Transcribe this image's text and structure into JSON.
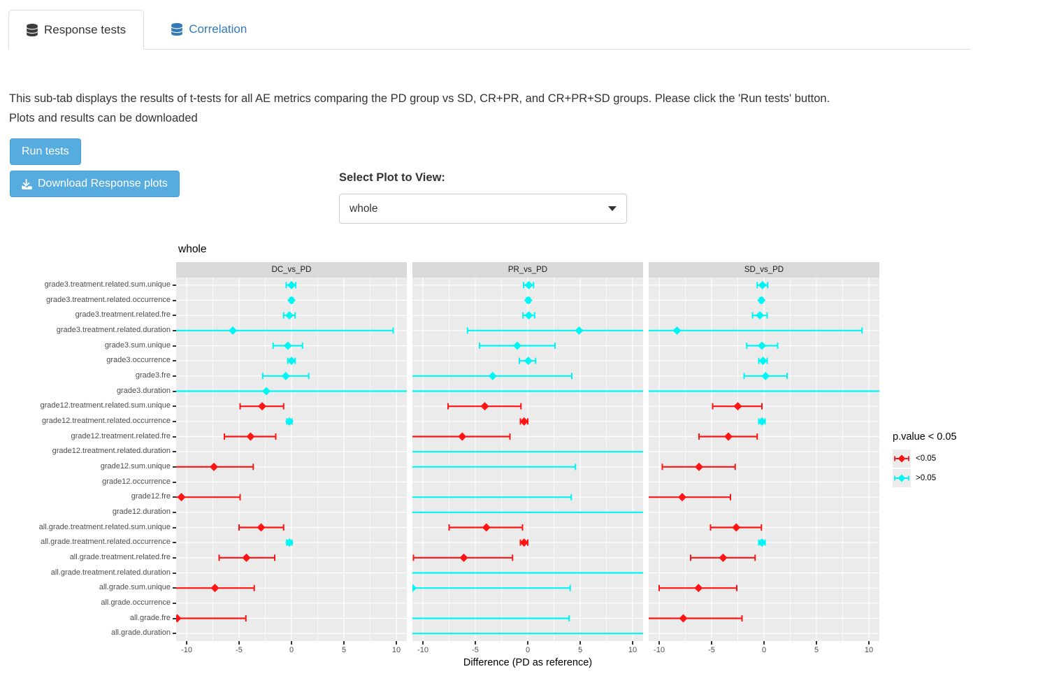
{
  "tabs": [
    {
      "label": "Response tests",
      "active": true
    },
    {
      "label": "Correlation",
      "active": false
    }
  ],
  "description": {
    "line1": "This sub-tab displays the results of t-tests for all AE metrics comparing the PD group vs SD, CR+PR, and CR+PR+SD groups. Please click the 'Run tests' button.",
    "line2": "Plots and results can be downloaded"
  },
  "buttons": {
    "run_label": "Run tests",
    "download_label": "Download Response plots"
  },
  "plot_selector": {
    "label": "Select Plot to View:",
    "value": "whole"
  },
  "colors": {
    "significant": "#FF1414",
    "not_significant": "#00F5F5",
    "button": "#56ACDF",
    "panel_bg": "#EBEBEB",
    "strip_bg": "#D9D9D9"
  },
  "chart_data": {
    "type": "scatter",
    "subtype": "faceted-forest-errorbar",
    "title": "whole",
    "facets": [
      "DC_vs_PD",
      "PR_vs_PD",
      "SD_vs_PD"
    ],
    "xlabel": "Difference (PD as reference)",
    "x_ticks": [
      -10,
      -5,
      0,
      5,
      10
    ],
    "xlim": [
      -11,
      11
    ],
    "grid": true,
    "legend": {
      "title": "p.value < 0.05",
      "position": "right",
      "entries": [
        {
          "label": "<0.05",
          "color": "#FF1414"
        },
        {
          "label": ">0.05",
          "color": "#00F5F5"
        }
      ]
    },
    "categories": [
      "grade3.treatment.related.sum.unique",
      "grade3.treatment.related.occurrence",
      "grade3.treatment.related.fre",
      "grade3.treatment.related.duration",
      "grade3.sum.unique",
      "grade3.occurrence",
      "grade3.fre",
      "grade3.duration",
      "grade12.treatment.related.sum.unique",
      "grade12.treatment.related.occurrence",
      "grade12.treatment.related.fre",
      "grade12.treatment.related.duration",
      "grade12.sum.unique",
      "grade12.occurrence",
      "grade12.fre",
      "grade12.duration",
      "all.grade.treatment.related.sum.unique",
      "all.grade.treatment.related.occurrence",
      "all.grade.treatment.related.fre",
      "all.grade.treatment.related.duration",
      "all.grade.sum.unique",
      "all.grade.occurrence",
      "all.grade.fre",
      "all.grade.duration"
    ],
    "series": [
      {
        "name": "DC_vs_PD",
        "points": [
          {
            "est": 0.0,
            "lo": -0.5,
            "hi": 0.4,
            "sig": false
          },
          {
            "est": 0.0,
            "lo": -0.15,
            "hi": 0.15,
            "sig": false
          },
          {
            "est": -0.2,
            "lo": -0.75,
            "hi": 0.35,
            "sig": false
          },
          {
            "est": -5.6,
            "lo": -11,
            "hi": 9.7,
            "sig": false,
            "clipLo": true
          },
          {
            "est": -0.35,
            "lo": -1.75,
            "hi": 1.05,
            "sig": false
          },
          {
            "est": 0.0,
            "lo": -0.35,
            "hi": 0.35,
            "sig": false
          },
          {
            "est": -0.55,
            "lo": -2.75,
            "hi": 1.65,
            "sig": false
          },
          {
            "est": -2.4,
            "lo": -11,
            "hi": 11,
            "sig": false,
            "clipLo": true,
            "clipHi": true
          },
          {
            "est": -2.8,
            "lo": -4.9,
            "hi": -0.75,
            "sig": true
          },
          {
            "est": -0.2,
            "lo": -0.45,
            "hi": 0.05,
            "sig": false
          },
          {
            "est": -3.9,
            "lo": -6.4,
            "hi": -1.5,
            "sig": true
          },
          null,
          {
            "est": -7.4,
            "lo": -11,
            "hi": -3.65,
            "sig": true,
            "clipLo": true
          },
          null,
          {
            "est": -10.5,
            "lo": -11,
            "hi": -4.9,
            "sig": true,
            "clipLo": true
          },
          null,
          {
            "est": -2.9,
            "lo": -5.0,
            "hi": -0.75,
            "sig": true
          },
          {
            "est": -0.2,
            "lo": -0.45,
            "hi": 0.05,
            "sig": false
          },
          {
            "est": -4.3,
            "lo": -6.9,
            "hi": -1.6,
            "sig": true
          },
          null,
          {
            "est": -7.3,
            "lo": -11,
            "hi": -3.55,
            "sig": true,
            "clipLo": true
          },
          null,
          {
            "est": -10.9,
            "lo": -11,
            "hi": -4.35,
            "sig": true,
            "clipLo": true
          },
          null
        ]
      },
      {
        "name": "PR_vs_PD",
        "points": [
          {
            "est": 0.1,
            "lo": -0.4,
            "hi": 0.55,
            "sig": false
          },
          {
            "est": 0.05,
            "lo": -0.1,
            "hi": 0.2,
            "sig": false
          },
          {
            "est": 0.1,
            "lo": -0.45,
            "hi": 0.65,
            "sig": false
          },
          {
            "est": 4.9,
            "lo": -5.75,
            "hi": 11,
            "sig": false,
            "clipHi": true
          },
          {
            "est": -1.0,
            "lo": -4.6,
            "hi": 2.6,
            "sig": false
          },
          {
            "est": 0.05,
            "lo": -0.8,
            "hi": 0.75,
            "sig": false
          },
          {
            "est": -3.35,
            "lo": -11,
            "hi": 4.2,
            "sig": false,
            "clipLo": true
          },
          {
            "est": null,
            "lo": -11,
            "hi": 11,
            "sig": false,
            "clipLo": true,
            "clipHi": true
          },
          {
            "est": -4.1,
            "lo": -7.6,
            "hi": -0.65,
            "sig": true
          },
          {
            "est": -0.35,
            "lo": -0.7,
            "hi": 0.0,
            "sig": true
          },
          {
            "est": -6.25,
            "lo": -11,
            "hi": -1.7,
            "sig": true,
            "clipLo": true
          },
          {
            "est": null,
            "lo": -11,
            "hi": 11,
            "sig": false,
            "clipLo": true,
            "clipHi": true
          },
          {
            "est": null,
            "lo": -11,
            "hi": 4.55,
            "sig": false,
            "clipLo": true
          },
          null,
          {
            "est": null,
            "lo": -11,
            "hi": 4.15,
            "sig": false,
            "clipLo": true
          },
          {
            "est": null,
            "lo": -11,
            "hi": 11,
            "sig": false,
            "clipLo": true,
            "clipHi": true
          },
          {
            "est": -3.95,
            "lo": -7.5,
            "hi": -0.5,
            "sig": true
          },
          {
            "est": -0.35,
            "lo": -0.7,
            "hi": 0.0,
            "sig": true
          },
          {
            "est": -6.1,
            "lo": -10.9,
            "hi": -1.45,
            "sig": true
          },
          {
            "est": null,
            "lo": -11,
            "hi": 11,
            "sig": false,
            "clipLo": true,
            "clipHi": true
          },
          {
            "est": -11,
            "lo": -11,
            "hi": 4.05,
            "sig": false,
            "clipLo": true
          },
          null,
          {
            "est": null,
            "lo": -11,
            "hi": 3.95,
            "sig": false,
            "clipLo": true
          },
          {
            "est": null,
            "lo": -11,
            "hi": 11,
            "sig": false,
            "clipLo": true,
            "clipHi": true
          }
        ]
      },
      {
        "name": "SD_vs_PD",
        "points": [
          {
            "est": -0.15,
            "lo": -0.65,
            "hi": 0.35,
            "sig": false
          },
          {
            "est": -0.25,
            "lo": -0.4,
            "hi": -0.1,
            "sig": false
          },
          {
            "est": -0.4,
            "lo": -1.1,
            "hi": 0.3,
            "sig": false
          },
          {
            "est": -8.3,
            "lo": -11,
            "hi": 9.35,
            "sig": false,
            "clipLo": true
          },
          {
            "est": -0.2,
            "lo": -1.65,
            "hi": 1.3,
            "sig": false
          },
          {
            "est": -0.1,
            "lo": -0.5,
            "hi": 0.3,
            "sig": false
          },
          {
            "est": 0.15,
            "lo": -1.9,
            "hi": 2.2,
            "sig": false
          },
          {
            "est": null,
            "lo": -11,
            "hi": 11,
            "sig": false,
            "clipLo": true,
            "clipHi": true
          },
          {
            "est": -2.5,
            "lo": -4.9,
            "hi": -0.2,
            "sig": true
          },
          {
            "est": -0.2,
            "lo": -0.5,
            "hi": 0.1,
            "sig": false
          },
          {
            "est": -3.4,
            "lo": -6.2,
            "hi": -0.65,
            "sig": true
          },
          null,
          {
            "est": -6.2,
            "lo": -9.7,
            "hi": -2.75,
            "sig": true
          },
          null,
          {
            "est": -7.8,
            "lo": -11,
            "hi": -3.2,
            "sig": true,
            "clipLo": true
          },
          null,
          {
            "est": -2.65,
            "lo": -5.1,
            "hi": -0.25,
            "sig": true
          },
          {
            "est": -0.2,
            "lo": -0.5,
            "hi": 0.1,
            "sig": false
          },
          {
            "est": -3.9,
            "lo": -7.0,
            "hi": -0.85,
            "sig": true
          },
          null,
          {
            "est": -6.25,
            "lo": -10.0,
            "hi": -2.6,
            "sig": true
          },
          null,
          {
            "est": -7.7,
            "lo": -11,
            "hi": -2.1,
            "sig": true,
            "clipLo": true
          },
          null
        ]
      }
    ]
  }
}
